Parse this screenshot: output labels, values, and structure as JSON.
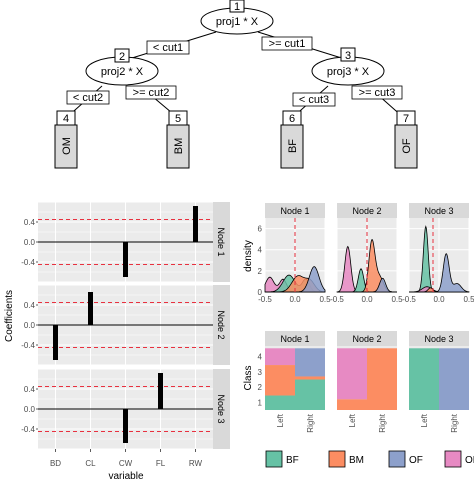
{
  "tree": {
    "nodes": [
      {
        "id": "1",
        "label": "proj1 * X"
      },
      {
        "id": "2",
        "label": "proj2 * X"
      },
      {
        "id": "3",
        "label": "proj3 * X"
      }
    ],
    "edges": [
      {
        "label": "< cut1"
      },
      {
        "label": ">= cut1"
      },
      {
        "label": "< cut2"
      },
      {
        "label": ">= cut2"
      },
      {
        "label": "< cut3"
      },
      {
        "label": ">= cut3"
      }
    ],
    "leaves": [
      {
        "id": "4",
        "class": "OM"
      },
      {
        "id": "5",
        "class": "BM"
      },
      {
        "id": "6",
        "class": "BF"
      },
      {
        "id": "7",
        "class": "OF"
      }
    ]
  },
  "chart_data": [
    {
      "type": "bar",
      "categories": [
        "BD",
        "CL",
        "CW",
        "FL",
        "RW"
      ],
      "xlabel": "variable",
      "ylabel": "Coefficients",
      "ylim": [
        -0.8,
        0.8
      ],
      "yticks": [
        "0.4",
        "0.0",
        "-0.4"
      ],
      "reference_lines": [
        0.45,
        -0.45
      ],
      "facets": [
        {
          "label": "Node 1",
          "values": [
            0,
            0,
            -0.7,
            0,
            0.72
          ]
        },
        {
          "label": "Node 2",
          "values": [
            -0.7,
            0.66,
            0,
            0,
            0
          ]
        },
        {
          "label": "Node 3",
          "values": [
            0,
            0,
            -0.68,
            0.72,
            0
          ]
        }
      ]
    },
    {
      "type": "area",
      "ylabel": "density",
      "xlim": [
        -0.5,
        0.5
      ],
      "ylim": [
        0,
        7
      ],
      "xticks": [
        "-0.5",
        "0.0",
        "0.5"
      ],
      "yticks": [
        "0",
        "2",
        "4",
        "6"
      ],
      "facets": [
        {
          "label": "Node 1",
          "cut": 0.0
        },
        {
          "label": "Node 2",
          "cut": 0.0
        },
        {
          "label": "Node 3",
          "cut": -0.1
        }
      ]
    },
    {
      "type": "bar",
      "ylabel": "Class",
      "categories": [
        "Left",
        "Right"
      ],
      "yticks": [
        "1",
        "2",
        "3",
        "4"
      ],
      "facets": [
        {
          "label": "Node 1"
        },
        {
          "label": "Node 2"
        },
        {
          "label": "Node 3"
        }
      ]
    }
  ],
  "legend": {
    "items": [
      {
        "label": "BF",
        "color": "#66C2A5"
      },
      {
        "label": "BM",
        "color": "#FC8D62"
      },
      {
        "label": "OF",
        "color": "#8DA0CB"
      },
      {
        "label": "OM",
        "color": "#E78AC3"
      }
    ]
  }
}
